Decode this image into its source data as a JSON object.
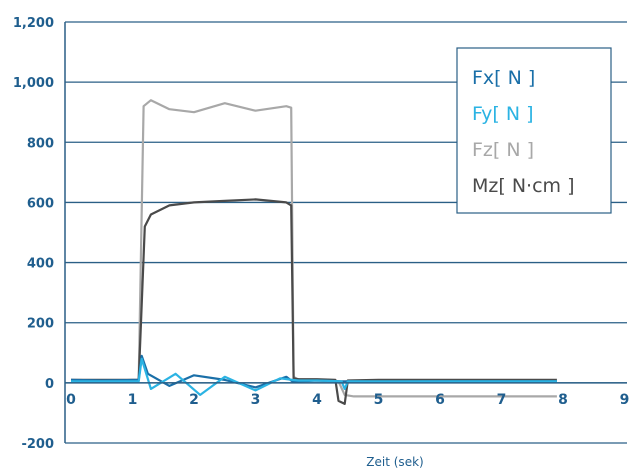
{
  "chart_data": {
    "type": "line",
    "title": "",
    "xlabel": "Zeit (sek)",
    "ylabel": "",
    "xlim": [
      0,
      9
    ],
    "ylim": [
      -200,
      1200
    ],
    "x_ticks": [
      "0",
      "1",
      "2",
      "3",
      "4",
      "5",
      "6",
      "7",
      "8",
      "9"
    ],
    "y_ticks": [
      "-200",
      "0",
      "200",
      "400",
      "600",
      "800",
      "1,000",
      "1,200"
    ],
    "grid": "horizontal",
    "legend_position": "top-right",
    "series": [
      {
        "name": "Fx[ N ]",
        "color": "#1a6fa8",
        "x": [
          0,
          0.5,
          1.1,
          1.15,
          1.25,
          1.6,
          2.0,
          2.5,
          3.0,
          3.5,
          3.6,
          3.7,
          4.0,
          4.4,
          4.5,
          5.0,
          6.0,
          7.0,
          7.9
        ],
        "y": [
          10,
          8,
          10,
          90,
          30,
          -10,
          25,
          10,
          -15,
          20,
          5,
          5,
          8,
          5,
          5,
          4,
          5,
          5,
          5
        ]
      },
      {
        "name": "Fy[ N ]",
        "color": "#2bb3e3",
        "x": [
          0,
          0.5,
          1.1,
          1.15,
          1.3,
          1.7,
          2.1,
          2.5,
          3.0,
          3.4,
          3.6,
          3.7,
          4.0,
          4.4,
          4.45,
          4.5,
          5.0,
          6.0,
          7.0,
          7.9
        ],
        "y": [
          5,
          5,
          5,
          80,
          -20,
          30,
          -40,
          20,
          -25,
          15,
          10,
          8,
          8,
          5,
          -20,
          5,
          5,
          5,
          5,
          5
        ]
      },
      {
        "name": "Fz[ N ]",
        "color": "#a8a8a8",
        "x": [
          0,
          0.5,
          1.1,
          1.18,
          1.3,
          1.6,
          2.0,
          2.5,
          3.0,
          3.5,
          3.58,
          3.62,
          3.7,
          4.0,
          4.35,
          4.45,
          4.6,
          5.0,
          6.0,
          7.0,
          7.9
        ],
        "y": [
          8,
          8,
          10,
          920,
          940,
          910,
          900,
          930,
          905,
          920,
          915,
          20,
          10,
          8,
          5,
          -40,
          -45,
          -45,
          -45,
          -45,
          -45
        ]
      },
      {
        "name": "Mz[ N·cm ]",
        "color": "#4a4a4a",
        "x": [
          0,
          0.5,
          1.1,
          1.2,
          1.3,
          1.6,
          2.0,
          2.5,
          3.0,
          3.5,
          3.58,
          3.62,
          3.7,
          4.0,
          4.3,
          4.35,
          4.45,
          4.5,
          5.0,
          6.0,
          7.0,
          7.9
        ],
        "y": [
          10,
          10,
          10,
          520,
          560,
          590,
          600,
          605,
          610,
          600,
          590,
          15,
          12,
          12,
          10,
          -60,
          -70,
          8,
          10,
          10,
          10,
          10
        ]
      }
    ]
  }
}
